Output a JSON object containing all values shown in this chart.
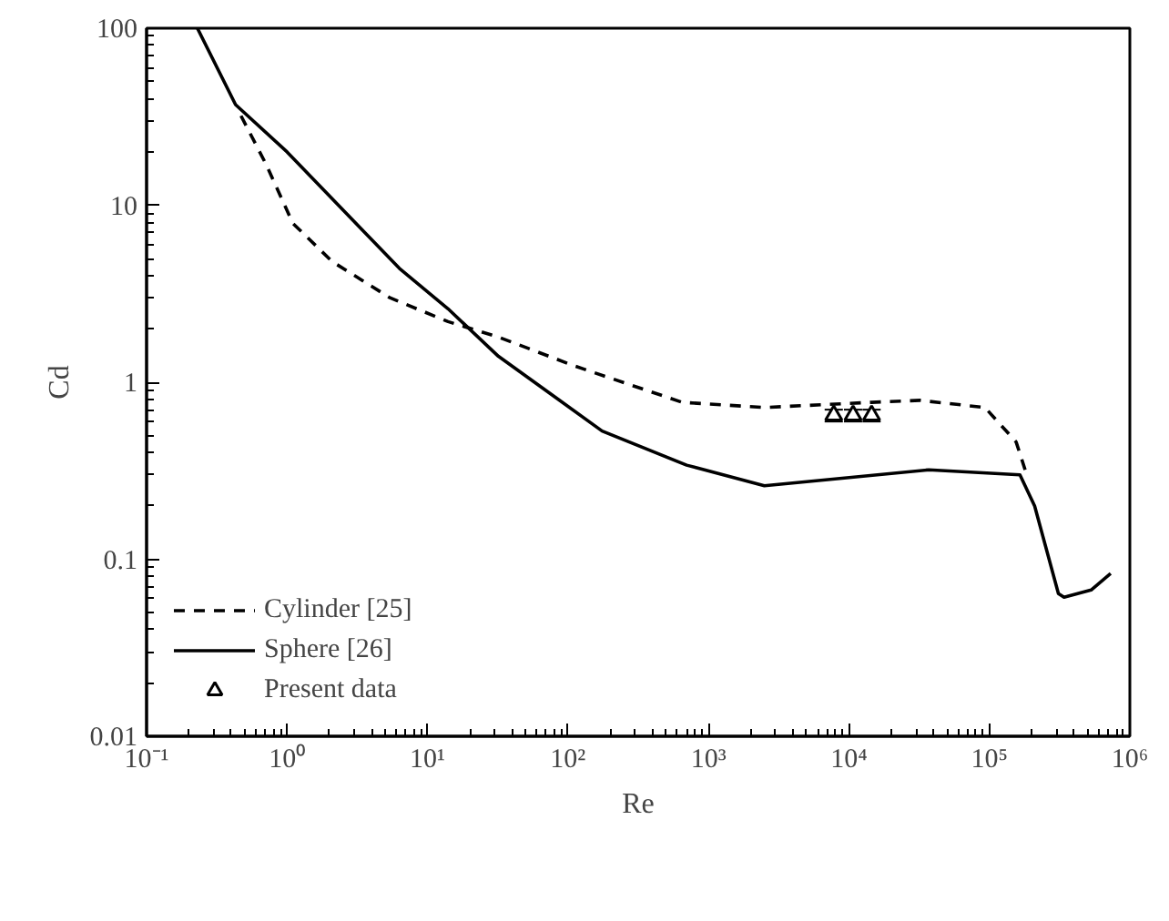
{
  "chart_data": {
    "type": "line",
    "xlabel": "Re",
    "ylabel": "Cd",
    "log": "xy",
    "xlim": [
      0.1,
      1000000
    ],
    "ylim": [
      0.01,
      100
    ],
    "xticks": [
      {
        "value": 0.1,
        "label": "10⁻¹"
      },
      {
        "value": 1,
        "label": "10⁰"
      },
      {
        "value": 10,
        "label": "10¹"
      },
      {
        "value": 100,
        "label": "10²"
      },
      {
        "value": 1000,
        "label": "10³"
      },
      {
        "value": 10000,
        "label": "10⁴"
      },
      {
        "value": 100000,
        "label": "10⁵"
      },
      {
        "value": 1000000,
        "label": "10⁶"
      }
    ],
    "yticks": [
      0.01,
      0.1,
      1,
      10,
      100
    ],
    "grid": false,
    "legend": "bottom left",
    "series": [
      {
        "name": "Cylinder [25]",
        "color": "#000000",
        "line_style": "dashed",
        "marker": "none",
        "x": [
          0.47,
          0.71,
          1.1,
          2.1,
          5.4,
          14,
          32,
          110,
          650,
          2500,
          14500,
          32000,
          93000,
          155000,
          182000
        ],
        "values": [
          32,
          17,
          7.9,
          4.8,
          3.0,
          2.2,
          1.8,
          1.24,
          0.77,
          0.72,
          0.77,
          0.79,
          0.72,
          0.46,
          0.31
        ]
      },
      {
        "name": "Sphere [26]",
        "color": "#000000",
        "line_style": "solid",
        "marker": "none",
        "x": [
          0.23,
          0.43,
          1.0,
          6.3,
          14,
          32,
          80,
          175,
          700,
          2500,
          37000,
          165000,
          210000,
          310000,
          340000,
          530000,
          730000
        ],
        "values": [
          100,
          37,
          20,
          4.4,
          2.6,
          1.4,
          0.83,
          0.53,
          0.34,
          0.26,
          0.32,
          0.3,
          0.2,
          0.064,
          0.061,
          0.067,
          0.083
        ]
      },
      {
        "name": "Present data",
        "type": "scatter",
        "color": "#000000",
        "marker": "triangle",
        "x": [
          7800,
          10700,
          14500
        ],
        "values": [
          0.65,
          0.65,
          0.65
        ],
        "errors": [
          0.05,
          0.05,
          0.05
        ]
      }
    ]
  }
}
